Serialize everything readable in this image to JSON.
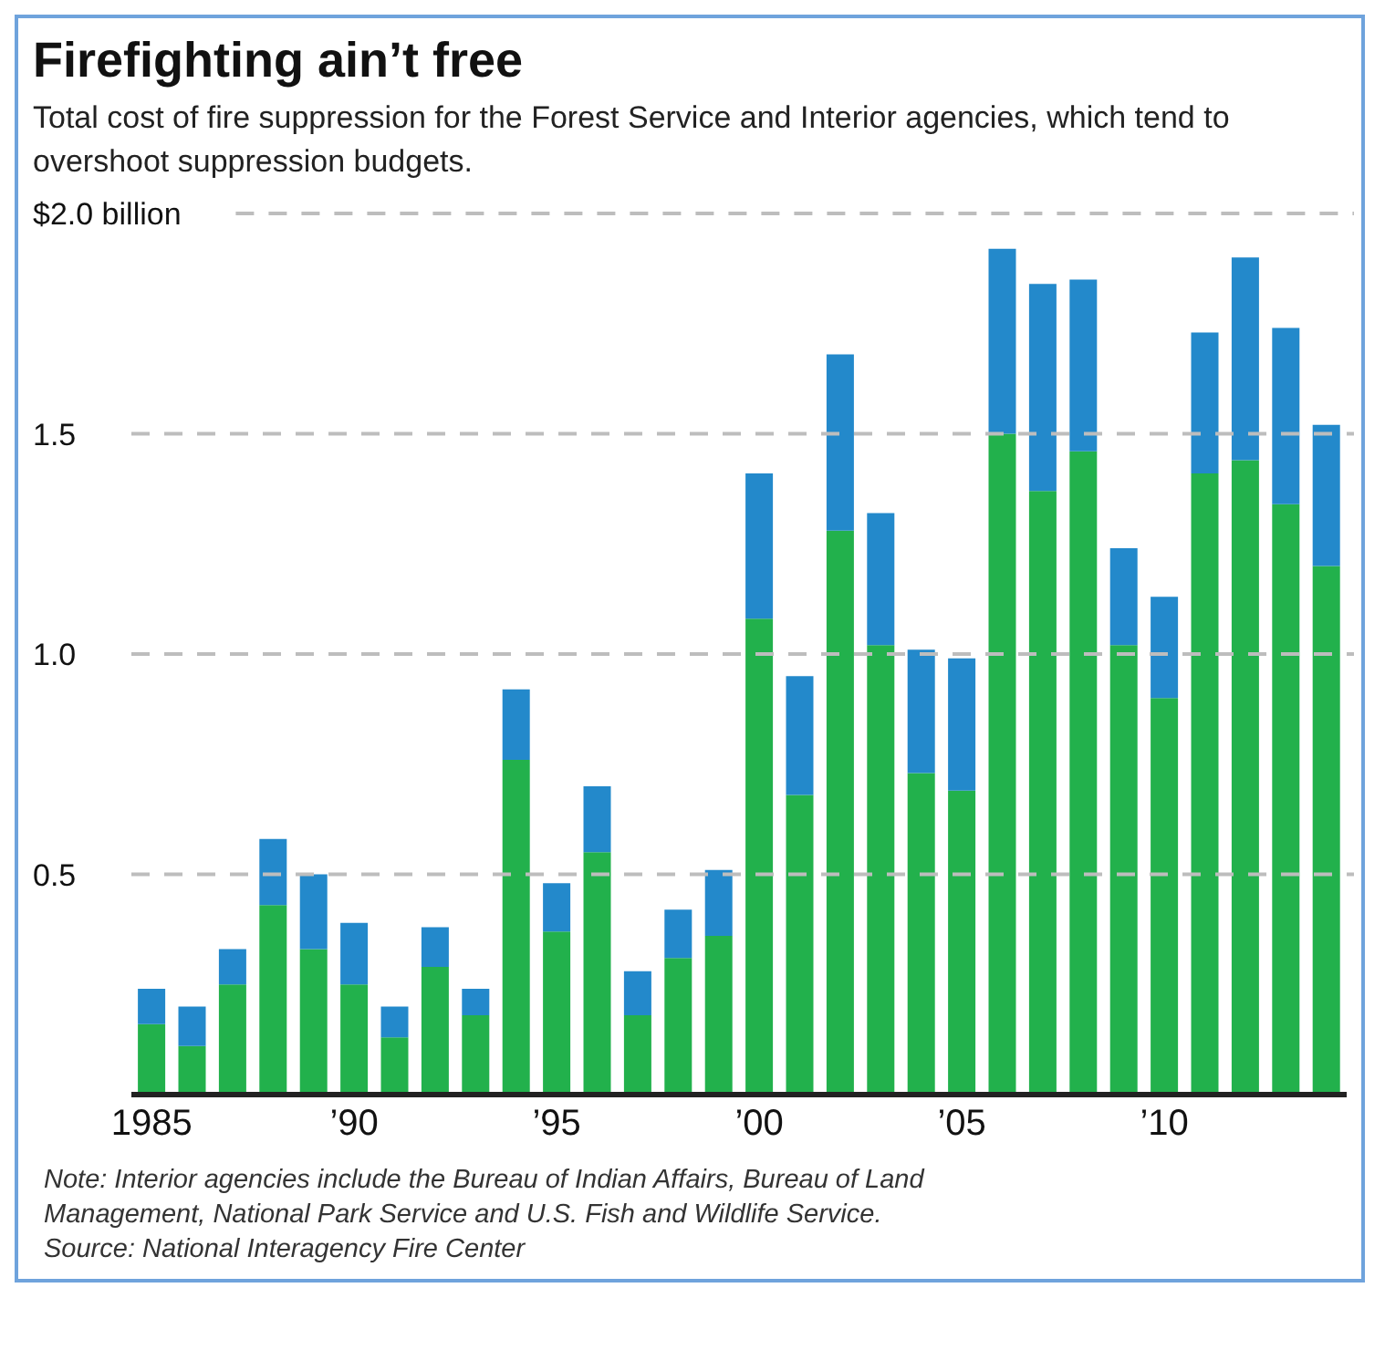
{
  "chart_data": {
    "type": "bar",
    "title": "Firefighting ain’t free",
    "subtitle": "Total cost of fire suppression for the Forest Service and Interior agencies, which tend to overshoot suppression budgets.",
    "categories": [
      "1985",
      null,
      null,
      null,
      null,
      "’90",
      null,
      null,
      null,
      null,
      "’95",
      null,
      null,
      null,
      null,
      "’00",
      null,
      null,
      null,
      null,
      "’05",
      null,
      null,
      null,
      null,
      "’10",
      null,
      null,
      null,
      null
    ],
    "stacked": true,
    "series": [
      {
        "color": "#22b14c",
        "values": [
          0.16,
          0.11,
          0.25,
          0.43,
          0.33,
          0.25,
          0.13,
          0.29,
          0.18,
          0.76,
          0.37,
          0.55,
          0.18,
          0.31,
          0.36,
          1.08,
          0.68,
          1.28,
          1.02,
          0.73,
          0.69,
          1.5,
          1.37,
          1.46,
          1.02,
          0.9,
          1.41,
          1.44,
          1.34,
          1.2
        ]
      },
      {
        "color": "#2389cb",
        "values": [
          0.08,
          0.09,
          0.08,
          0.15,
          0.17,
          0.14,
          0.07,
          0.09,
          0.06,
          0.16,
          0.11,
          0.15,
          0.1,
          0.11,
          0.15,
          0.33,
          0.27,
          0.4,
          0.3,
          0.28,
          0.3,
          0.42,
          0.47,
          0.39,
          0.22,
          0.23,
          0.32,
          0.46,
          0.4,
          0.32
        ]
      }
    ],
    "ylim": [
      0,
      2
    ],
    "yticks": [
      {
        "value": 0.5,
        "label": "0.5"
      },
      {
        "value": 1,
        "label": "1.0"
      },
      {
        "value": 1.5,
        "label": "1.5"
      },
      {
        "value": 2,
        "label": "$2.0 billion"
      }
    ],
    "grid": "y",
    "annotations": [
      "Note: Interior agencies include the Bureau of Indian Affairs, Bureau of Land Management, National Park Service and U.S. Fish and Wildlife Service.",
      "Source: National Interagency Fire Center"
    ]
  }
}
